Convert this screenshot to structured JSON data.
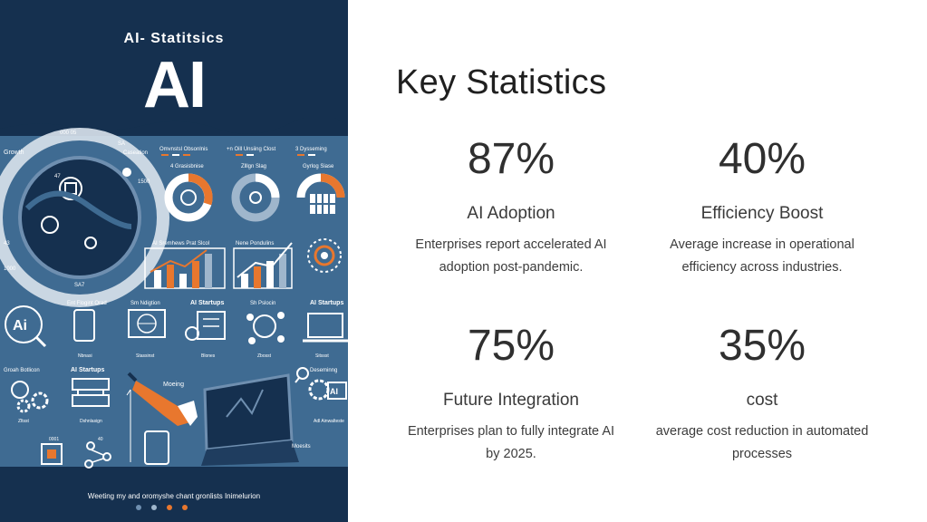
{
  "poster": {
    "kicker": "AI- Statitsics",
    "headline": "AI",
    "caption": "Weeting my and oromyshe chant gronlists Inimelurion",
    "colors": {
      "navy": "#15304f",
      "blue": "#3f6b92",
      "orange": "#e8772e",
      "white": "#ffffff"
    },
    "dots": [
      "#6f8fb0",
      "#9fb6cc",
      "#e8772e",
      "#e8772e"
    ],
    "labels": {
      "growth": "Growth",
      "bubble_top": "000 05",
      "sa": "SA",
      "caseation": "Caseation",
      "n47": "47",
      "n1500": "1500",
      "n1000": "1000",
      "n43": "43",
      "sa7": "SA7",
      "donut1": "Omvnstsl Obsonlnis",
      "donut1_sub": "4 Grasisbnise",
      "donut2": "+n Oill Unsiing Clost",
      "donut2_sub": "Zlllgn Slag",
      "donut3": "3 Dysseming",
      "donut3_sub": "Gyrlog Siase",
      "bar1": "AI Sremhews Prat Slcol",
      "bar2": "Nene Pondulins",
      "row1_a": "Ent Flogint Orad",
      "row1_a_sub": "Nbnasi",
      "row1_b": "Sm Ndigtion",
      "row1_b_sub": "Stassinst",
      "row1_c": "AI Startups",
      "row1_c_sub": "Blones",
      "row1_d": "Sh Pslocin",
      "row1_d_sub": "Zbosst",
      "row1_e": "AI Startups",
      "row1_e_sub": "Sitssst",
      "row2_a": "Groah Botlicon",
      "row2_a_sub": "Zltsst",
      "row2_b": "AI Startups",
      "row2_b_sub": "Dshnlasign",
      "moeing": "Moeing",
      "deseming": "Deseminng",
      "adiwa": "Adl Ainwalteste",
      "moesits": "Moesits",
      "n0001": "0001",
      "n40": "40"
    }
  },
  "slide": {
    "title": "Key Statistics",
    "stats": [
      {
        "value": "87%",
        "label": "AI Adoption",
        "desc_line1": "Enterprises report accelerated AI",
        "desc_line2": "adoption post-pandemic."
      },
      {
        "value": "40%",
        "label": "Efficiency Boost",
        "desc_line1": "Average increase in operational",
        "desc_line2": "efficiency across industries."
      },
      {
        "value": "75%",
        "label": "Future Integration",
        "desc_line1": "Enterprises plan to fully integrate AI",
        "desc_line2": "by 2025."
      },
      {
        "value": "35%",
        "label": "cost",
        "desc_line1": "average cost reduction in automated",
        "desc_line2": "processes"
      }
    ]
  }
}
